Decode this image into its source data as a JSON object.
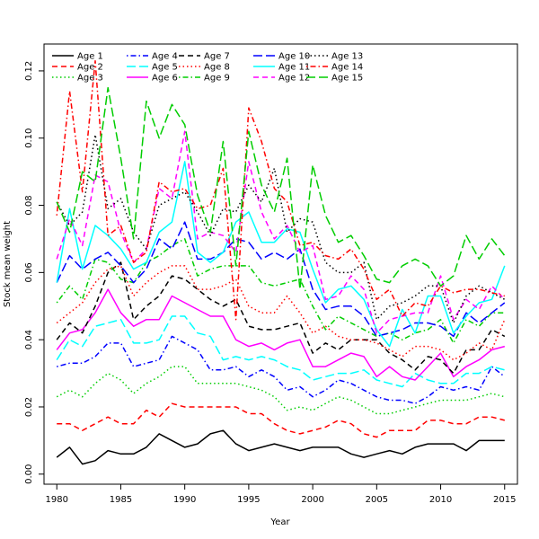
{
  "chart_data": {
    "type": "line",
    "xlabel": "Year",
    "ylabel": "Stock mean weight",
    "xlim": [
      1979,
      2016
    ],
    "ylim": [
      -0.003,
      0.128
    ],
    "x_ticks": [
      1980,
      1985,
      1990,
      1995,
      2000,
      2005,
      2010,
      2015
    ],
    "x_tick_labels": [
      "1980",
      "1985",
      "1990",
      "1995",
      "2000",
      "2005",
      "2010",
      "2015"
    ],
    "y_ticks": [
      0.0,
      0.02,
      0.04,
      0.06,
      0.08,
      0.1,
      0.12
    ],
    "y_tick_labels": [
      "0.00",
      "0.02",
      "0.04",
      "0.06",
      "0.08",
      "0.10",
      "0.12"
    ],
    "grid": false,
    "legend_position": "top-left",
    "x": [
      1980,
      1981,
      1982,
      1983,
      1984,
      1985,
      1986,
      1987,
      1988,
      1989,
      1990,
      1991,
      1992,
      1993,
      1994,
      1995,
      1996,
      1997,
      1998,
      1999,
      2000,
      2001,
      2002,
      2003,
      2004,
      2005,
      2006,
      2007,
      2008,
      2009,
      2010,
      2011,
      2012,
      2013,
      2014,
      2015
    ],
    "series": [
      {
        "name": "Age 1",
        "color": "#000000",
        "dash": "solid",
        "values": [
          0.005,
          0.008,
          0.003,
          0.004,
          0.007,
          0.006,
          0.006,
          0.008,
          0.012,
          0.01,
          0.008,
          0.009,
          0.012,
          0.013,
          0.009,
          0.007,
          0.008,
          0.009,
          0.008,
          0.007,
          0.008,
          0.008,
          0.008,
          0.006,
          0.005,
          0.006,
          0.007,
          0.006,
          0.008,
          0.009,
          0.009,
          0.009,
          0.007,
          0.01,
          0.01,
          0.01
        ]
      },
      {
        "name": "Age 2",
        "color": "#ff0000",
        "dash": "dashed",
        "values": [
          0.015,
          0.015,
          0.013,
          0.015,
          0.017,
          0.015,
          0.015,
          0.019,
          0.017,
          0.021,
          0.02,
          0.02,
          0.02,
          0.02,
          0.02,
          0.018,
          0.018,
          0.015,
          0.013,
          0.012,
          0.013,
          0.014,
          0.016,
          0.015,
          0.012,
          0.011,
          0.013,
          0.013,
          0.013,
          0.016,
          0.016,
          0.015,
          0.015,
          0.017,
          0.017,
          0.016
        ]
      },
      {
        "name": "Age 3",
        "color": "#00cd00",
        "dash": "dotted",
        "values": [
          0.023,
          0.025,
          0.023,
          0.027,
          0.03,
          0.028,
          0.024,
          0.027,
          0.029,
          0.032,
          0.032,
          0.027,
          0.027,
          0.027,
          0.027,
          0.026,
          0.025,
          0.023,
          0.019,
          0.02,
          0.019,
          0.021,
          0.023,
          0.022,
          0.02,
          0.018,
          0.018,
          0.019,
          0.02,
          0.021,
          0.022,
          0.022,
          0.022,
          0.023,
          0.024,
          0.023
        ]
      },
      {
        "name": "Age 4",
        "color": "#0000ff",
        "dash": "dashdot",
        "values": [
          0.032,
          0.033,
          0.033,
          0.035,
          0.039,
          0.039,
          0.032,
          0.033,
          0.034,
          0.041,
          0.039,
          0.037,
          0.031,
          0.031,
          0.032,
          0.029,
          0.031,
          0.029,
          0.025,
          0.026,
          0.023,
          0.025,
          0.028,
          0.027,
          0.025,
          0.023,
          0.022,
          0.022,
          0.021,
          0.023,
          0.026,
          0.025,
          0.026,
          0.025,
          0.032,
          0.029
        ]
      },
      {
        "name": "Age 5",
        "color": "#00ffff",
        "dash": "longdash",
        "values": [
          0.034,
          0.04,
          0.038,
          0.044,
          0.045,
          0.046,
          0.039,
          0.039,
          0.04,
          0.047,
          0.047,
          0.042,
          0.041,
          0.034,
          0.035,
          0.034,
          0.035,
          0.034,
          0.032,
          0.031,
          0.028,
          0.029,
          0.03,
          0.03,
          0.031,
          0.028,
          0.027,
          0.026,
          0.03,
          0.028,
          0.027,
          0.027,
          0.03,
          0.03,
          0.032,
          0.031
        ]
      },
      {
        "name": "Age 6",
        "color": "#ff00ff",
        "dash": "solid",
        "values": [
          0.037,
          0.042,
          0.043,
          0.048,
          0.055,
          0.048,
          0.044,
          0.046,
          0.046,
          0.053,
          0.051,
          0.049,
          0.047,
          0.047,
          0.04,
          0.038,
          0.039,
          0.037,
          0.039,
          0.04,
          0.032,
          0.032,
          0.034,
          0.036,
          0.035,
          0.029,
          0.032,
          0.029,
          0.028,
          0.032,
          0.036,
          0.029,
          0.032,
          0.034,
          0.037,
          0.038
        ]
      },
      {
        "name": "Age 7",
        "color": "#000000",
        "dash": "dashed",
        "values": [
          0.04,
          0.045,
          0.042,
          0.05,
          0.06,
          0.063,
          0.046,
          0.05,
          0.053,
          0.059,
          0.058,
          0.055,
          0.052,
          0.05,
          0.052,
          0.044,
          0.043,
          0.043,
          0.044,
          0.045,
          0.036,
          0.039,
          0.037,
          0.04,
          0.04,
          0.04,
          0.036,
          0.034,
          0.031,
          0.035,
          0.034,
          0.03,
          0.037,
          0.037,
          0.043,
          0.041
        ]
      },
      {
        "name": "Age 8",
        "color": "#ff0000",
        "dash": "dotted",
        "values": [
          0.045,
          0.048,
          0.051,
          0.057,
          0.061,
          0.062,
          0.053,
          0.057,
          0.06,
          0.062,
          0.062,
          0.055,
          0.055,
          0.056,
          0.058,
          0.05,
          0.048,
          0.048,
          0.053,
          0.048,
          0.042,
          0.044,
          0.041,
          0.04,
          0.04,
          0.039,
          0.037,
          0.035,
          0.038,
          0.038,
          0.037,
          0.034,
          0.036,
          0.039,
          0.037,
          0.046
        ]
      },
      {
        "name": "Age 9",
        "color": "#00cd00",
        "dash": "dashdot",
        "values": [
          0.051,
          0.056,
          0.052,
          0.064,
          0.063,
          0.058,
          0.057,
          0.063,
          0.065,
          0.068,
          0.07,
          0.059,
          0.061,
          0.062,
          0.062,
          0.062,
          0.057,
          0.056,
          0.057,
          0.058,
          0.05,
          0.043,
          0.047,
          0.045,
          0.043,
          0.041,
          0.042,
          0.04,
          0.042,
          0.043,
          0.046,
          0.039,
          0.046,
          0.044,
          0.048,
          0.048
        ]
      },
      {
        "name": "Age 10",
        "color": "#0000ff",
        "dash": "longdash",
        "values": [
          0.057,
          0.065,
          0.061,
          0.064,
          0.066,
          0.062,
          0.057,
          0.061,
          0.07,
          0.067,
          0.075,
          0.064,
          0.064,
          0.066,
          0.07,
          0.069,
          0.064,
          0.066,
          0.064,
          0.067,
          0.055,
          0.049,
          0.05,
          0.05,
          0.047,
          0.041,
          0.042,
          0.043,
          0.045,
          0.045,
          0.044,
          0.041,
          0.048,
          0.045,
          0.048,
          0.051
        ]
      },
      {
        "name": "Age 11",
        "color": "#00ffff",
        "dash": "solid",
        "values": [
          0.057,
          0.079,
          0.061,
          0.074,
          0.071,
          0.067,
          0.061,
          0.063,
          0.072,
          0.075,
          0.093,
          0.066,
          0.063,
          0.066,
          0.075,
          0.078,
          0.069,
          0.069,
          0.073,
          0.072,
          0.061,
          0.051,
          0.055,
          0.056,
          0.052,
          0.043,
          0.038,
          0.049,
          0.042,
          0.053,
          0.053,
          0.042,
          0.047,
          0.051,
          0.052,
          0.062
        ]
      },
      {
        "name": "Age 12",
        "color": "#ff00ff",
        "dash": "dashed",
        "values": [
          0.064,
          0.076,
          0.068,
          0.089,
          0.087,
          0.072,
          0.063,
          0.067,
          0.085,
          0.082,
          0.102,
          0.07,
          0.072,
          0.071,
          0.066,
          0.093,
          0.078,
          0.07,
          0.074,
          0.066,
          0.068,
          0.052,
          0.053,
          0.059,
          0.055,
          0.042,
          0.046,
          0.047,
          0.048,
          0.048,
          0.059,
          0.046,
          0.052,
          0.049,
          0.056,
          0.052
        ]
      },
      {
        "name": "Age 13",
        "color": "#000000",
        "dash": "dotted",
        "values": [
          0.081,
          0.074,
          0.078,
          0.101,
          0.079,
          0.082,
          0.072,
          0.067,
          0.08,
          0.082,
          0.084,
          0.078,
          0.071,
          0.079,
          0.078,
          0.086,
          0.081,
          0.091,
          0.072,
          0.076,
          0.075,
          0.063,
          0.06,
          0.06,
          0.063,
          0.046,
          0.05,
          0.051,
          0.053,
          0.056,
          0.056,
          0.045,
          0.053,
          0.056,
          0.054,
          0.052
        ]
      },
      {
        "name": "Age 14",
        "color": "#ff0000",
        "dash": "dashdot",
        "values": [
          0.077,
          0.114,
          0.084,
          0.123,
          0.071,
          0.074,
          0.063,
          0.066,
          0.087,
          0.084,
          0.085,
          0.079,
          0.08,
          0.091,
          0.046,
          0.109,
          0.099,
          0.085,
          0.081,
          0.068,
          0.069,
          0.065,
          0.064,
          0.067,
          0.061,
          0.052,
          0.055,
          0.047,
          0.051,
          0.05,
          0.056,
          0.054,
          0.055,
          0.055,
          0.054,
          0.053
        ]
      },
      {
        "name": "Age 15",
        "color": "#00cd00",
        "dash": "longdash",
        "values": [
          0.081,
          0.072,
          0.09,
          0.087,
          0.115,
          0.094,
          0.07,
          0.111,
          0.1,
          0.11,
          0.104,
          0.083,
          0.072,
          0.099,
          0.062,
          0.102,
          0.086,
          0.078,
          0.094,
          0.055,
          0.092,
          0.077,
          0.069,
          0.071,
          0.065,
          0.058,
          0.057,
          0.062,
          0.064,
          0.062,
          0.056,
          0.059,
          0.071,
          0.064,
          0.07,
          0.065
        ]
      }
    ]
  }
}
